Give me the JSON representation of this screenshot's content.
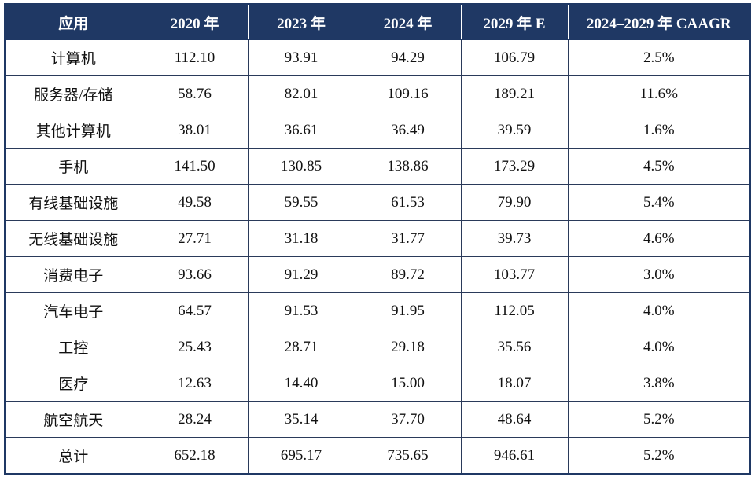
{
  "table": {
    "headers": [
      "应用",
      "2020 年",
      "2023 年",
      "2024 年",
      "2029 年 E",
      "2024–2029 年 CAAGR"
    ],
    "rows": [
      [
        "计算机",
        "112.10",
        "93.91",
        "94.29",
        "106.79",
        "2.5%"
      ],
      [
        "服务器/存储",
        "58.76",
        "82.01",
        "109.16",
        "189.21",
        "11.6%"
      ],
      [
        "其他计算机",
        "38.01",
        "36.61",
        "36.49",
        "39.59",
        "1.6%"
      ],
      [
        "手机",
        "141.50",
        "130.85",
        "138.86",
        "173.29",
        "4.5%"
      ],
      [
        "有线基础设施",
        "49.58",
        "59.55",
        "61.53",
        "79.90",
        "5.4%"
      ],
      [
        "无线基础设施",
        "27.71",
        "31.18",
        "31.77",
        "39.73",
        "4.6%"
      ],
      [
        "消费电子",
        "93.66",
        "91.29",
        "89.72",
        "103.77",
        "3.0%"
      ],
      [
        "汽车电子",
        "64.57",
        "91.53",
        "91.95",
        "112.05",
        "4.0%"
      ],
      [
        "工控",
        "25.43",
        "28.71",
        "29.18",
        "35.56",
        "4.0%"
      ],
      [
        "医疗",
        "12.63",
        "14.40",
        "15.00",
        "18.07",
        "3.8%"
      ],
      [
        "航空航天",
        "28.24",
        "35.14",
        "37.70",
        "48.64",
        "5.2%"
      ],
      [
        "总计",
        "652.18",
        "695.17",
        "735.65",
        "946.61",
        "5.2%"
      ]
    ]
  },
  "colors": {
    "header_bg": "#1f3864",
    "header_text": "#ffffff",
    "grid": "#2a3a5a"
  }
}
